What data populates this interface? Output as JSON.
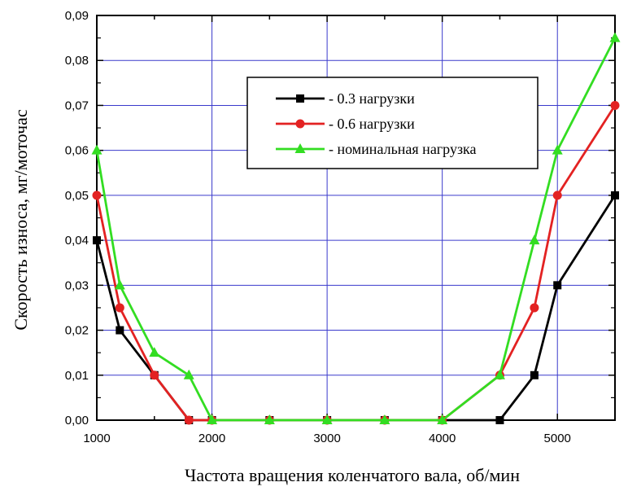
{
  "chart_data": {
    "type": "line",
    "xlabel": "Частота вращения коленчатого вала, об/мин",
    "ylabel": "Скорость износа, мг/моточас",
    "xlim": [
      1000,
      5500
    ],
    "ylim": [
      0,
      0.09
    ],
    "x_ticks": [
      1000,
      1500,
      2000,
      2500,
      3000,
      3500,
      4000,
      4500,
      5000,
      5500
    ],
    "x_tick_labels": [
      "1000",
      "",
      "2000",
      "",
      "3000",
      "",
      "4000",
      "",
      "5000",
      ""
    ],
    "y_ticks": [
      0,
      0.01,
      0.02,
      0.03,
      0.04,
      0.05,
      0.06,
      0.07,
      0.08,
      0.09
    ],
    "y_tick_labels": [
      "0,00",
      "0,01",
      "0,02",
      "0,03",
      "0,04",
      "0,05",
      "0,06",
      "0,07",
      "0,08",
      "0,09"
    ],
    "grid": true,
    "legend_position": "top-right",
    "series": [
      {
        "name": "- 0.3 нагрузки",
        "color": "#000000",
        "marker": "square",
        "x": [
          1000,
          1200,
          1500,
          1800,
          2000,
          2500,
          3000,
          3500,
          4000,
          4500,
          4800,
          5000,
          5500
        ],
        "y": [
          0.04,
          0.02,
          0.01,
          0.0,
          0.0,
          0.0,
          0.0,
          0.0,
          0.0,
          0.0,
          0.01,
          0.03,
          0.05
        ]
      },
      {
        "name": "- 0.6 нагрузки",
        "color": "#e32222",
        "marker": "circle",
        "x": [
          1000,
          1200,
          1500,
          1800,
          2000,
          2500,
          3000,
          3500,
          4000,
          4500,
          4800,
          5000,
          5500
        ],
        "y": [
          0.05,
          0.025,
          0.01,
          0.0,
          0.0,
          0.0,
          0.0,
          0.0,
          0.0,
          0.01,
          0.025,
          0.05,
          0.07
        ]
      },
      {
        "name": "- номинальная нагрузка",
        "color": "#33dd22",
        "marker": "triangle",
        "x": [
          1000,
          1200,
          1500,
          1800,
          2000,
          2500,
          3000,
          3500,
          4000,
          4500,
          4800,
          5000,
          5500
        ],
        "y": [
          0.06,
          0.03,
          0.015,
          0.01,
          0.0,
          0.0,
          0.0,
          0.0,
          0.0,
          0.01,
          0.04,
          0.06,
          0.085
        ]
      }
    ]
  }
}
